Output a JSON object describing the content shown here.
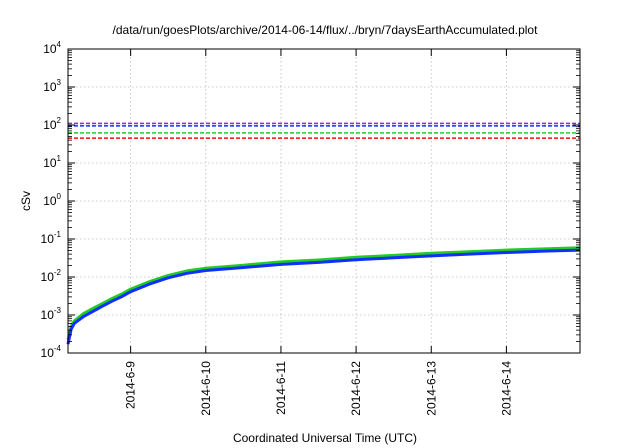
{
  "chart_data": {
    "type": "line",
    "title": "/data/run/goesPlots/archive/2014-06-14/flux/../bryn/7daysEarthAccumulated.plot",
    "xlabel": "Coordinated Universal Time (UTC)",
    "ylabel": "cSv",
    "yscale": "log",
    "ylim": [
      0.0001,
      10000
    ],
    "y_ticks": [
      {
        "value": 0.0001,
        "base": "10",
        "exp": "-4"
      },
      {
        "value": 0.001,
        "base": "10",
        "exp": "-3"
      },
      {
        "value": 0.01,
        "base": "10",
        "exp": "-2"
      },
      {
        "value": 0.1,
        "base": "10",
        "exp": "-1"
      },
      {
        "value": 1,
        "base": "10",
        "exp": "0"
      },
      {
        "value": 10,
        "base": "10",
        "exp": "1"
      },
      {
        "value": 100,
        "base": "10",
        "exp": "2"
      },
      {
        "value": 1000,
        "base": "10",
        "exp": "3"
      },
      {
        "value": 10000,
        "base": "10",
        "exp": "4"
      }
    ],
    "xlim": [
      "2014-06-08T04:00",
      "2014-06-14T23:30"
    ],
    "x_ticks": [
      "2014-6-9",
      "2014-6-10",
      "2014-6-11",
      "2014-6-12",
      "2014-6-13",
      "2014-6-14"
    ],
    "grid": true,
    "thresholds": [
      {
        "value": 110,
        "color": "#8a2be2"
      },
      {
        "value": 95,
        "color": "#1030ff"
      },
      {
        "value": 62,
        "color": "#22cc22"
      },
      {
        "value": 45,
        "color": "#ee1111"
      }
    ],
    "series": [
      {
        "color": "#22cc22",
        "x": [
          "2014-06-08T04:00",
          "2014-06-08T05:00",
          "2014-06-08T06:00",
          "2014-06-08T09:00",
          "2014-06-08T12:00",
          "2014-06-08T15:00",
          "2014-06-08T18:00",
          "2014-06-08T21:00",
          "2014-06-09T00:00",
          "2014-06-09T06:00",
          "2014-06-09T12:00",
          "2014-06-09T18:00",
          "2014-06-10T00:00",
          "2014-06-10T12:00",
          "2014-06-11T00:00",
          "2014-06-11T12:00",
          "2014-06-12T00:00",
          "2014-06-12T12:00",
          "2014-06-13T00:00",
          "2014-06-13T12:00",
          "2014-06-14T00:00",
          "2014-06-14T12:00",
          "2014-06-14T23:30"
        ],
        "y": [
          0.00022,
          0.0005,
          0.0007,
          0.0011,
          0.0015,
          0.002,
          0.0027,
          0.0035,
          0.0048,
          0.0075,
          0.011,
          0.0145,
          0.017,
          0.0205,
          0.025,
          0.028,
          0.033,
          0.037,
          0.042,
          0.046,
          0.051,
          0.055,
          0.059
        ]
      },
      {
        "color": "#1030ff",
        "x": [
          "2014-06-08T04:00",
          "2014-06-08T05:00",
          "2014-06-08T06:00",
          "2014-06-08T09:00",
          "2014-06-08T12:00",
          "2014-06-08T15:00",
          "2014-06-08T18:00",
          "2014-06-08T21:00",
          "2014-06-09T00:00",
          "2014-06-09T06:00",
          "2014-06-09T12:00",
          "2014-06-09T18:00",
          "2014-06-10T00:00",
          "2014-06-10T12:00",
          "2014-06-11T00:00",
          "2014-06-11T12:00",
          "2014-06-12T00:00",
          "2014-06-12T12:00",
          "2014-06-13T00:00",
          "2014-06-13T12:00",
          "2014-06-14T00:00",
          "2014-06-14T12:00",
          "2014-06-14T23:30"
        ],
        "y": [
          0.00017,
          0.00042,
          0.0006,
          0.00092,
          0.00125,
          0.0017,
          0.0023,
          0.003,
          0.0041,
          0.0065,
          0.0095,
          0.0125,
          0.0148,
          0.0178,
          0.0215,
          0.0242,
          0.0285,
          0.032,
          0.036,
          0.04,
          0.044,
          0.048,
          0.051
        ]
      }
    ]
  }
}
